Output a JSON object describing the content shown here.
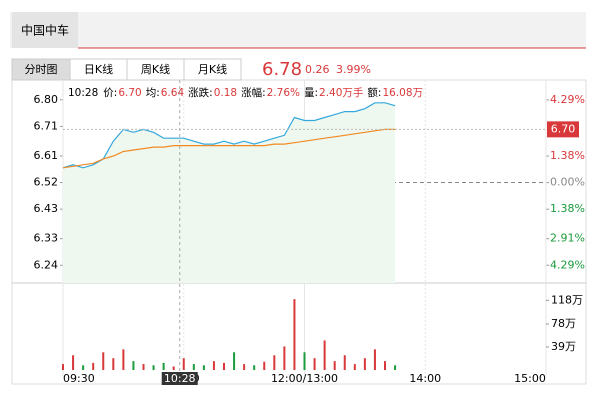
{
  "header": {
    "stock_tab": "中国中车"
  },
  "tabs": [
    "分时图",
    "日K线",
    "周K线",
    "月K线"
  ],
  "quote": {
    "price": 6.78,
    "change": 0.26,
    "change_pct": "3.99%"
  },
  "info": [
    {
      "label": "10:28",
      "value": ""
    },
    {
      "label": "价:",
      "value": "6.70"
    },
    {
      "label": "均:",
      "value": "6.64"
    },
    {
      "label": "涨跌:",
      "value": "0.18"
    },
    {
      "label": "涨幅:",
      "value": "2.76%"
    },
    {
      "label": "量:",
      "value": "2.40万手"
    },
    {
      "label": "额:",
      "value": "16.08万"
    }
  ],
  "chart_data": [
    {
      "type": "line",
      "x": [
        0,
        5,
        10,
        15,
        20,
        25,
        30,
        35,
        40,
        45,
        50,
        55,
        60,
        65,
        70,
        75,
        80,
        85,
        90,
        95,
        100,
        105,
        110,
        115,
        120,
        125,
        130,
        135,
        140,
        145,
        150,
        155,
        160,
        165
      ],
      "xlim": [
        0,
        240
      ],
      "xticks": [
        {
          "value": 0,
          "label": "09:30"
        },
        {
          "value": 60,
          "label": "10:30"
        },
        {
          "value": 120,
          "label": "12:00/13:00"
        },
        {
          "value": 180,
          "label": "14:00"
        },
        {
          "value": 240,
          "label": "15:00"
        }
      ],
      "ylim": [
        6.18,
        6.84
      ],
      "yticks": [
        {
          "value": 6.8,
          "label": "6.80"
        },
        6.71,
        6.61,
        6.52,
        6.43,
        6.33,
        6.24
      ],
      "y2lim": [
        -5.21,
        4.91
      ],
      "y2ticks": [
        {
          "value": 4.29,
          "label": "4.29%"
        },
        {
          "value": 1.38,
          "label": "1.38%"
        },
        {
          "value": 0,
          "label": "0.00%"
        },
        {
          "value": -1.38,
          "label": "1.38%"
        },
        {
          "value": -2.91,
          "label": "2.91%"
        },
        {
          "value": -4.29,
          "label": "4.29%"
        }
      ],
      "up_color": "#d9383a",
      "down_color": "#1a9b3c",
      "prev_close": 6.52,
      "cursor": {
        "x": 58,
        "label": "10:28"
      },
      "last_price_tag": {
        "value": 6.7,
        "label": "6.70"
      },
      "series": [
        {
          "name": "价",
          "color": "#34a8dd",
          "fill": "#eff8ee",
          "values": [
            6.57,
            6.58,
            6.57,
            6.58,
            6.6,
            6.66,
            6.7,
            6.69,
            6.7,
            6.69,
            6.67,
            6.67,
            6.67,
            6.66,
            6.65,
            6.65,
            6.66,
            6.65,
            6.66,
            6.65,
            6.66,
            6.67,
            6.68,
            6.74,
            6.73,
            6.73,
            6.74,
            6.75,
            6.76,
            6.76,
            6.77,
            6.79,
            6.79,
            6.78
          ]
        },
        {
          "name": "均",
          "color": "#f08a24",
          "values": [
            6.57,
            6.575,
            6.58,
            6.585,
            6.6,
            6.61,
            6.625,
            6.63,
            6.635,
            6.64,
            6.64,
            6.645,
            6.645,
            6.645,
            6.645,
            6.645,
            6.645,
            6.645,
            6.645,
            6.645,
            6.645,
            6.65,
            6.65,
            6.655,
            6.66,
            6.665,
            6.67,
            6.675,
            6.68,
            6.685,
            6.69,
            6.695,
            6.7,
            6.7
          ]
        }
      ]
    },
    {
      "type": "bar",
      "ylim": [
        0,
        144
      ],
      "yticks": [
        {
          "value": 39,
          "label": "39万"
        },
        {
          "value": 78,
          "label": "78万"
        },
        {
          "value": 118,
          "label": "118万"
        }
      ],
      "values": [
        10,
        25,
        8,
        12,
        30,
        20,
        35,
        15,
        10,
        8,
        12,
        6,
        20,
        10,
        8,
        15,
        12,
        30,
        10,
        8,
        14,
        25,
        40,
        120,
        30,
        20,
        50,
        15,
        25,
        10,
        20,
        35,
        15,
        8
      ]
    }
  ]
}
